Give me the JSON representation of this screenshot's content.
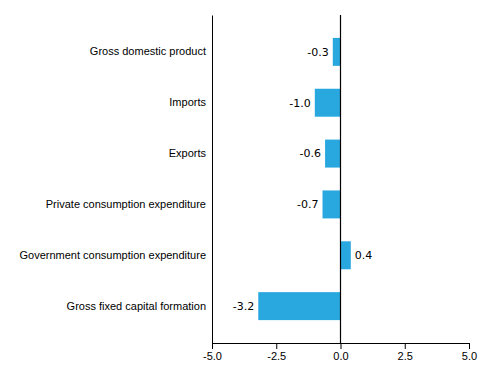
{
  "chart_data": {
    "type": "bar",
    "orientation": "horizontal",
    "categories": [
      "Gross fixed capital formation",
      "Government consumption expenditure",
      "Private consumption expenditure",
      "Exports",
      "Imports",
      "Gross domestic product"
    ],
    "values": [
      -3.2,
      0.4,
      -0.7,
      -0.6,
      -1.0,
      -0.3
    ],
    "value_labels": [
      "-3.2",
      "0.4",
      "-0.7",
      "-0.6",
      "-1.0",
      "-0.3"
    ],
    "data_labels": true,
    "color": "#29a8e0",
    "xlim": [
      -5.0,
      5.0
    ],
    "xticks": [
      {
        "value": -5.0,
        "label": "-5.0"
      },
      -2.5,
      {
        "value": 0.0,
        "label": "0.0"
      },
      2.5,
      {
        "value": 5.0,
        "label": "5.0"
      }
    ],
    "grid": false
  }
}
